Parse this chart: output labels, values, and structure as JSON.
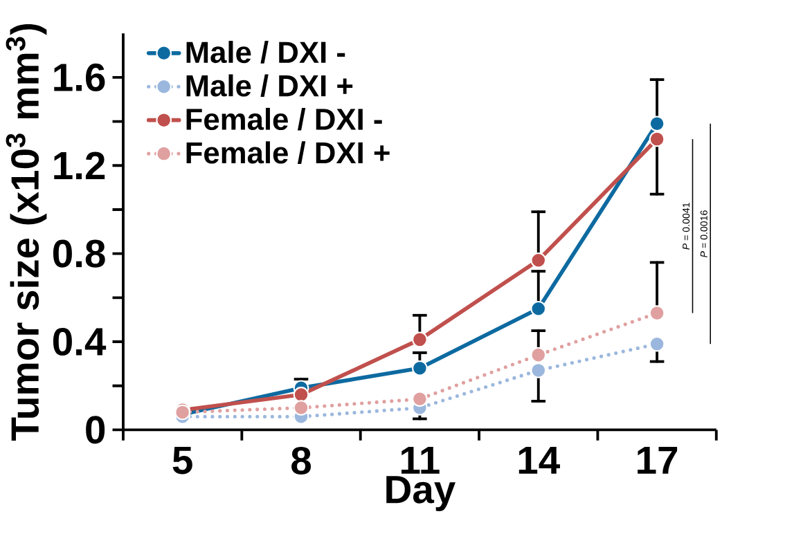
{
  "chart_data": {
    "type": "line",
    "xlabel": "Day",
    "ylabel": "Tumor size (x10$^{3}$ mm$^{3}$)",
    "categories": [
      "5",
      "8",
      "11",
      "14",
      "17"
    ],
    "ylim": [
      0,
      1.8
    ],
    "yticks": [
      0,
      {
        "value": 0.2,
        "label": null
      },
      0.4,
      {
        "value": 0.6,
        "label": null
      },
      0.8,
      {
        "value": 1.0,
        "label": null
      },
      1.2,
      {
        "value": 1.4,
        "label": null
      },
      1.6
    ],
    "series": [
      {
        "name": "Male / DXI -",
        "color": "#0d6aa0",
        "line_style": "solid",
        "values": [
          0.07,
          0.19,
          0.28,
          0.55,
          1.39
        ],
        "errors": [
          null,
          [
            0.19,
            0.23
          ],
          [
            0.28,
            0.35
          ],
          [
            0.55,
            0.72
          ],
          [
            1.39,
            1.59
          ]
        ]
      },
      {
        "name": "Male / DXI +",
        "color": "#9bb7dd",
        "line_style": "dotted",
        "values": [
          0.06,
          0.06,
          0.1,
          0.27,
          0.39
        ],
        "errors": [
          null,
          null,
          [
            0.05,
            0.1
          ],
          [
            0.13,
            0.27
          ],
          [
            0.31,
            0.39
          ]
        ]
      },
      {
        "name": "Female / DXI -",
        "color": "#c0504d",
        "line_style": "solid",
        "values": [
          0.09,
          0.16,
          0.41,
          0.77,
          1.32
        ],
        "errors": [
          null,
          null,
          [
            0.41,
            0.52
          ],
          [
            0.77,
            0.99
          ],
          [
            1.07,
            1.32
          ]
        ]
      },
      {
        "name": "Female / DXI +",
        "color": "#e0a0a0",
        "line_style": "dotted",
        "values": [
          0.08,
          0.1,
          0.14,
          0.34,
          0.53
        ],
        "errors": [
          null,
          null,
          null,
          [
            0.34,
            0.45
          ],
          [
            0.53,
            0.76
          ]
        ]
      }
    ],
    "annotations": [
      "*P* = 0.0041",
      "*P* = 0.0016"
    ],
    "marker": "circle",
    "legend": "top left",
    "grid": false
  }
}
